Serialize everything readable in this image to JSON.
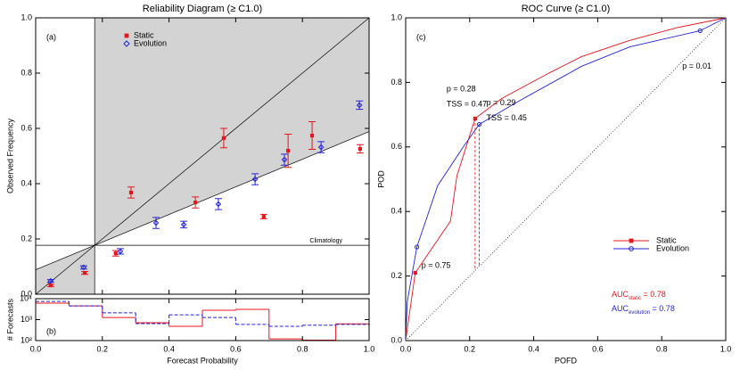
{
  "chart_data": [
    {
      "type": "reliability",
      "title": "Reliability Diagram (≥ C1.0)",
      "panel_label": "(a)",
      "y_label": "Observed Frequency",
      "xlim": [
        0,
        1
      ],
      "ylim": [
        0,
        1
      ],
      "xticks": [
        0,
        0.2,
        0.4,
        0.6,
        0.8,
        1
      ],
      "yticks": [
        {
          "value": 0,
          "label": "0.0"
        },
        {
          "value": 0.2,
          "label": "0.2"
        },
        {
          "value": 0.4,
          "label": "0.4"
        },
        {
          "value": 0.6,
          "label": "0.6"
        },
        {
          "value": 0.8,
          "label": "0.8"
        },
        {
          "value": 1,
          "label": "1.0"
        }
      ],
      "climatology": 0.177,
      "climatology_label": "Climatology",
      "legend_loc": "upper left",
      "series": [
        {
          "name": "Static",
          "color": "#e8141c",
          "marker": "square",
          "x": [
            0.045,
            0.147,
            0.24,
            0.286,
            0.479,
            0.564,
            0.684,
            0.757,
            0.829,
            0.973
          ],
          "values": [
            0.032,
            0.077,
            0.148,
            0.368,
            0.332,
            0.565,
            0.281,
            0.519,
            0.574,
            0.526
          ],
          "errors": [
            0.004,
            0.005,
            0.01,
            0.02,
            0.02,
            0.035,
            0.008,
            0.06,
            0.05,
            0.015
          ]
        },
        {
          "name": "Evolution",
          "color": "#2424d8",
          "marker": "diamond",
          "x": [
            0.045,
            0.144,
            0.254,
            0.361,
            0.444,
            0.548,
            0.658,
            0.746,
            0.856,
            0.971
          ],
          "values": [
            0.048,
            0.097,
            0.155,
            0.258,
            0.252,
            0.326,
            0.416,
            0.487,
            0.532,
            0.684
          ],
          "errors": [
            0.005,
            0.006,
            0.01,
            0.02,
            0.012,
            0.02,
            0.02,
            0.02,
            0.02,
            0.015
          ]
        }
      ]
    },
    {
      "type": "histogram",
      "panel_label": "(b)",
      "x_label": "Forecast Probability",
      "y_label": "# Forecasts",
      "bins": [
        0,
        0.1,
        0.2,
        0.3,
        0.4,
        0.5,
        0.6,
        0.7,
        0.8,
        0.9,
        1
      ],
      "xlim": [
        0,
        1
      ],
      "ylim": [
        100,
        10000
      ],
      "log_y": true,
      "xticks": [
        {
          "value": 0,
          "label": "0.0"
        },
        {
          "value": 0.2,
          "label": "0.2"
        },
        {
          "value": 0.4,
          "label": "0.4"
        },
        {
          "value": 0.6,
          "label": "0.6"
        },
        {
          "value": 0.8,
          "label": "0.8"
        },
        {
          "value": 1,
          "label": "1.0"
        }
      ],
      "yticks": [
        {
          "value": 100,
          "label": "10²"
        },
        {
          "value": 1000,
          "label": "10³"
        },
        {
          "value": 10000,
          "label": "10⁴"
        }
      ],
      "series": [
        {
          "color": "#e8141c",
          "line_style": "solid",
          "values": [
            6100,
            4500,
            1260,
            710,
            480,
            2800,
            3100,
            120,
            105,
            630
          ]
        },
        {
          "color": "#2424d8",
          "line_style": "dashed",
          "values": [
            7400,
            4500,
            2100,
            640,
            1700,
            1260,
            590,
            480,
            540,
            590
          ]
        }
      ]
    },
    {
      "type": "roc",
      "title": "ROC Curve (≥ C1.0)",
      "panel_label": "(c)",
      "x_label": "POFD",
      "y_label": "POD",
      "xlim": [
        0,
        1
      ],
      "ylim": [
        0,
        1
      ],
      "xticks": [
        {
          "value": 0,
          "label": "0.0"
        },
        {
          "value": 0.2,
          "label": "0.2"
        },
        {
          "value": 0.4,
          "label": "0.4"
        },
        {
          "value": 0.6,
          "label": "0.6"
        },
        {
          "value": 0.8,
          "label": "0.8"
        },
        {
          "value": 1,
          "label": "1.0"
        }
      ],
      "yticks": [
        {
          "value": 0,
          "label": "0.0"
        },
        {
          "value": 0.2,
          "label": "0.2"
        },
        {
          "value": 0.4,
          "label": "0.4"
        },
        {
          "value": 0.6,
          "label": "0.6"
        },
        {
          "value": 0.8,
          "label": "0.8"
        },
        {
          "value": 1,
          "label": "1.0"
        }
      ],
      "legend_loc": "lower right",
      "series": [
        {
          "name": "Static",
          "color": "#e8141c",
          "marker": "square",
          "x": [
            0,
            0.03,
            0.14,
            0.16,
            0.217,
            0.3,
            0.45,
            0.55,
            0.7,
            0.85,
            1
          ],
          "values": [
            0,
            0.21,
            0.37,
            0.51,
            0.688,
            0.75,
            0.83,
            0.88,
            0.93,
            0.97,
            1
          ],
          "thresholds": [
            {
              "x": 0.03,
              "y": 0.21,
              "label": "p = 0.75",
              "label_color": "#000000"
            },
            {
              "x": 0.217,
              "y": 0.688,
              "label": "p = 0.28",
              "tss": "TSS = 0.47",
              "label_color": "#e8141c"
            }
          ],
          "auc_label": {
            "base": "AUC",
            "sub": "static",
            "text": " = 0.78"
          }
        },
        {
          "name": "Evolution",
          "color": "#2424d8",
          "marker": "circle",
          "x": [
            0,
            0.005,
            0.035,
            0.1,
            0.18,
            0.23,
            0.35,
            0.55,
            0.7,
            0.92,
            1
          ],
          "values": [
            0,
            0.12,
            0.29,
            0.48,
            0.6,
            0.67,
            0.74,
            0.85,
            0.91,
            0.96,
            1
          ],
          "thresholds": [
            {
              "x": 0.035,
              "y": 0.29
            },
            {
              "x": 0.23,
              "y": 0.67,
              "label": "p = 0.29",
              "tss": "TSS = 0.45",
              "label_color": "#2424d8"
            },
            {
              "x": 0.92,
              "y": 0.96,
              "label": "p = 0.01",
              "label_color": "#000000"
            }
          ],
          "auc_label": {
            "base": "AUC",
            "sub": "evolution",
            "text": " = 0.78"
          }
        }
      ]
    }
  ]
}
